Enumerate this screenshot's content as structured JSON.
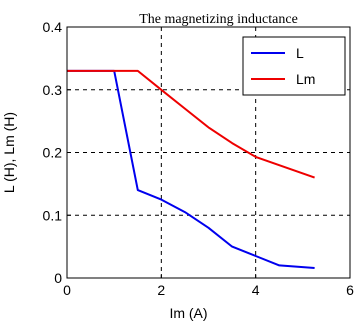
{
  "chart_data": {
    "type": "line",
    "title": "The magnetizing inductance",
    "xlabel": "Im  (A)",
    "ylabel": "L (H), Lm (H)",
    "xlim": [
      0,
      6
    ],
    "ylim": [
      0,
      0.4
    ],
    "xticks": [
      0,
      2,
      4,
      6
    ],
    "yticks": [
      0,
      0.1,
      0.2,
      0.3,
      0.4
    ],
    "xtick_labels": [
      "0",
      "2",
      "4",
      "6"
    ],
    "ytick_labels": [
      "0",
      "0.1",
      "0.2",
      "0.3",
      "0.4"
    ],
    "grid": true,
    "legend_position": "top-right",
    "series": [
      {
        "name": "L",
        "color": "#0000ee",
        "x": [
          0,
          1.0,
          1.5,
          2.0,
          2.5,
          3.0,
          3.5,
          4.0,
          4.5,
          5.25
        ],
        "y": [
          0.33,
          0.33,
          0.14,
          0.125,
          0.105,
          0.08,
          0.05,
          0.035,
          0.02,
          0.016
        ]
      },
      {
        "name": "Lm",
        "color": "#ee0000",
        "x": [
          0,
          1.5,
          2.0,
          2.5,
          3.0,
          3.5,
          4.0,
          5.25
        ],
        "y": [
          0.33,
          0.33,
          0.3,
          0.27,
          0.24,
          0.215,
          0.193,
          0.16
        ]
      }
    ]
  }
}
